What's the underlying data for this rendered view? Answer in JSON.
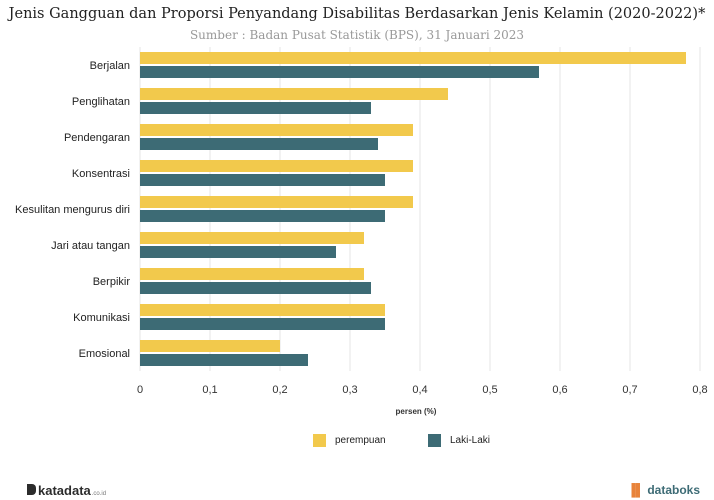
{
  "header": {
    "title": "Jenis Gangguan dan Proporsi Penyandang Disabilitas Berdasarkan Jenis Kelamin (2020-2022)*",
    "subtitle": "Sumber : Badan Pusat Statistik (BPS), 31 Januari 2023"
  },
  "chart_data": {
    "type": "bar",
    "orientation": "horizontal",
    "categories": [
      "Berjalan",
      "Penglihatan",
      "Pendengaran",
      "Konsentrasi",
      "Kesulitan mengurus diri",
      "Jari atau tangan",
      "Berpikir",
      "Komunikasi",
      "Emosional"
    ],
    "series": [
      {
        "name": "perempuan",
        "color": "#f2c94c",
        "values": [
          0.78,
          0.44,
          0.39,
          0.39,
          0.39,
          0.32,
          0.32,
          0.35,
          0.2
        ]
      },
      {
        "name": "Laki-Laki",
        "color": "#3d6b75",
        "values": [
          0.57,
          0.33,
          0.34,
          0.35,
          0.35,
          0.28,
          0.33,
          0.35,
          0.24
        ]
      }
    ],
    "xlabel": "persen (%)",
    "xlim": [
      0,
      0.8
    ],
    "xticks": [
      "0",
      "0,1",
      "0,2",
      "0,3",
      "0,4",
      "0,5",
      "0,6",
      "0,7",
      "0,8"
    ],
    "grid": "vertical",
    "legend_position": "bottom"
  },
  "branding": {
    "left": "katadata",
    "left_suffix": ".co.id",
    "right": "databoks"
  }
}
